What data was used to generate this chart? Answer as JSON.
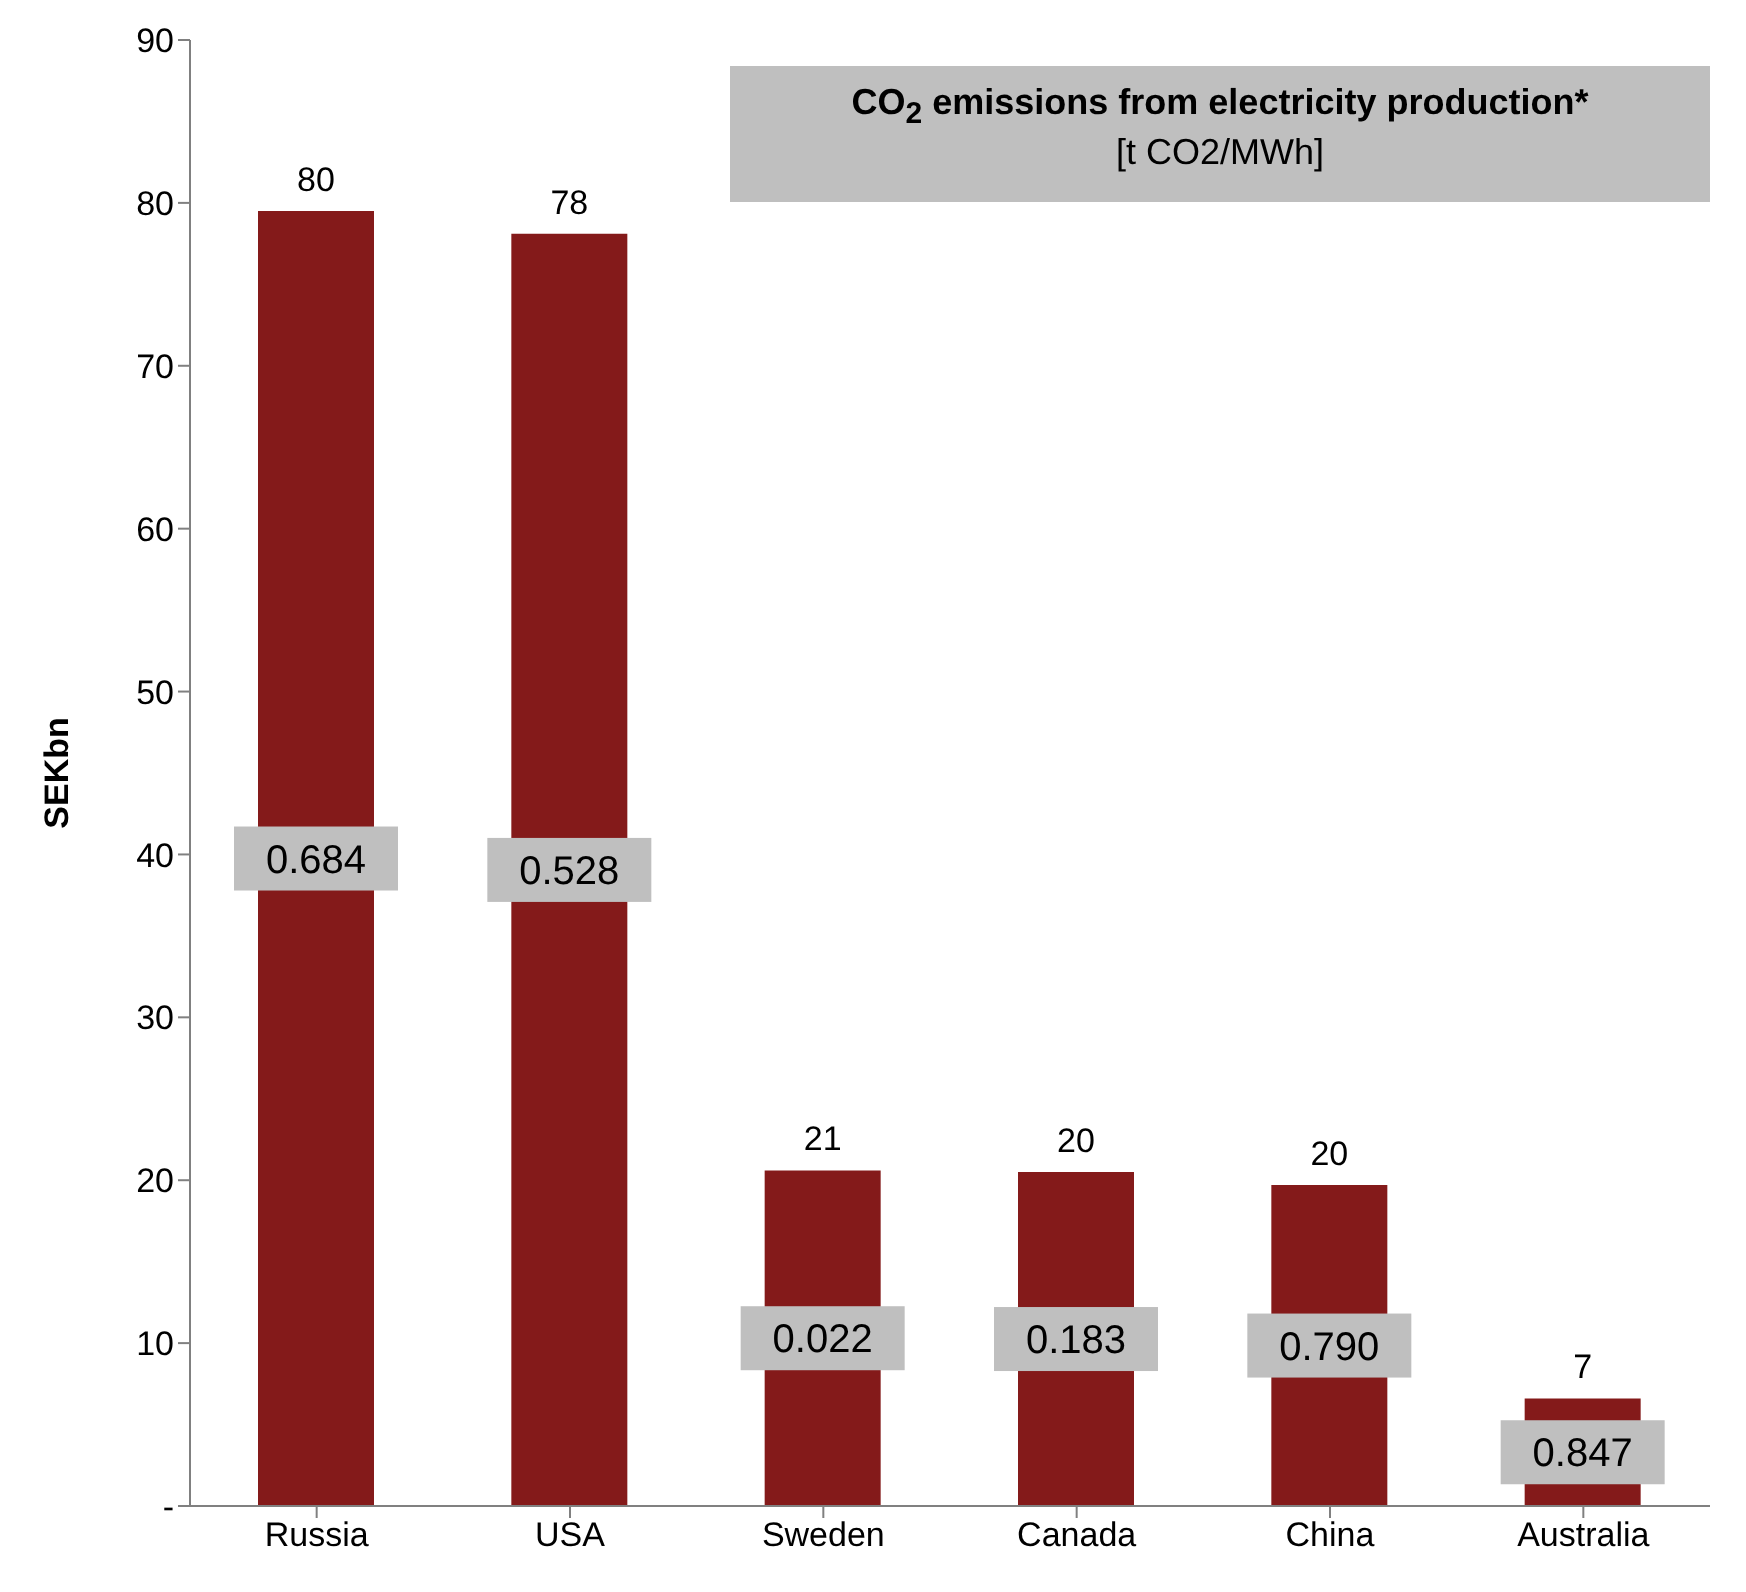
{
  "chart_data": {
    "type": "bar",
    "ylabel": "SEKbn",
    "categories": [
      "Russia",
      "USA",
      "Sweden",
      "Canada",
      "China",
      "Australia"
    ],
    "values": [
      79.5,
      78.1,
      20.6,
      20.5,
      19.7,
      6.6
    ],
    "value_labels": [
      "80",
      "78",
      "21",
      "20",
      "20",
      "7"
    ],
    "color": "#841a1a",
    "ylim": [
      0,
      90
    ],
    "yticks": [
      {
        "value": 0,
        "label": "-"
      },
      10,
      20,
      30,
      40,
      50,
      60,
      70,
      80,
      90
    ],
    "grid": false,
    "legend": false,
    "annotations": [
      "CO$_{2}$ emissions from electricity production*",
      "[t CO2/MWh]",
      "0.684",
      "0.528",
      "0.022",
      "0.183",
      "0.790",
      "0.847"
    ]
  }
}
